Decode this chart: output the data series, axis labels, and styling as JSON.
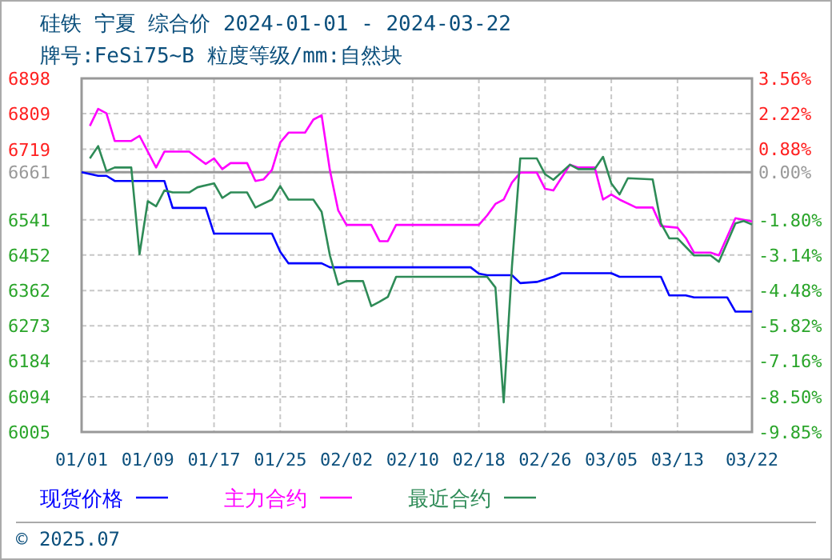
{
  "chart_data": {
    "type": "line",
    "title": "硅铁  宁夏  综合价  2024-01-01 - 2024-03-22",
    "subtitle": "牌号:FeSi75~B 粒度等级/mm:自然块",
    "xlim": [
      "--01-01",
      "--03-22"
    ],
    "xticks": [
      {
        "value": "--01-01",
        "label": "01/01"
      },
      {
        "value": "--01-09",
        "label": "01/09"
      },
      {
        "value": "--01-17",
        "label": "01/17"
      },
      {
        "value": "--01-25",
        "label": "01/25"
      },
      {
        "value": "--02-02",
        "label": "02/02"
      },
      {
        "value": "--02-10",
        "label": "02/10"
      },
      {
        "value": "--02-18",
        "label": "02/18"
      },
      {
        "value": "--02-26",
        "label": "02/26"
      },
      {
        "value": "--03-05",
        "label": "03/05"
      },
      {
        "value": "--03-13",
        "label": "03/13"
      },
      {
        "value": "--03-22",
        "label": "03/22"
      }
    ],
    "ylim": [
      6005,
      6898
    ],
    "yticks": [
      6005,
      6094,
      6184,
      6273,
      6362,
      6452,
      6541,
      6661,
      6719,
      6809,
      6898
    ],
    "y2lim": [
      -9.85,
      3.56
    ],
    "y2ticks": [
      {
        "value": -9.85,
        "label": "-9.85%"
      },
      {
        "value": -8.5,
        "label": "-8.50%"
      },
      {
        "value": -7.16,
        "label": "-7.16%"
      },
      {
        "value": -5.82,
        "label": "-5.82%"
      },
      {
        "value": -4.48,
        "label": "-4.48%"
      },
      {
        "value": -3.14,
        "label": "-3.14%"
      },
      {
        "value": -1.8,
        "label": "-1.80%"
      },
      {
        "value": 0,
        "label": "0.00%"
      },
      {
        "value": 0.88,
        "label": "0.88%"
      },
      {
        "value": 2.22,
        "label": "2.22%"
      },
      {
        "value": 3.56,
        "label": "3.56%"
      }
    ],
    "ref_lines": [
      {
        "axis": "y",
        "value": 6661,
        "color": "#999999"
      }
    ],
    "grid": true,
    "legend": "bottom",
    "line_style": "solid",
    "marker": "none",
    "annotations": [
      "© 2025.07"
    ],
    "series": [
      {
        "name": "现货价格",
        "color": "#0000ff",
        "x": [
          "--01-01",
          "--01-03",
          "--01-04",
          "--01-05",
          "--01-11",
          "--01-12",
          "--01-16",
          "--01-17",
          "--01-24",
          "--01-25",
          "--01-26",
          "--01-30",
          "--01-31",
          "--02-17",
          "--02-18",
          "--02-19",
          "--02-22",
          "--02-23",
          "--02-25",
          "--02-27",
          "--02-28",
          "--03-05",
          "--03-06",
          "--03-11",
          "--03-12",
          "--03-14",
          "--03-15",
          "--03-19",
          "--03-20",
          "--03-22"
        ],
        "values": [
          6661,
          6652,
          6652,
          6639,
          6639,
          6571,
          6571,
          6506,
          6506,
          6460,
          6431,
          6431,
          6421,
          6421,
          6405,
          6401,
          6401,
          6381,
          6384,
          6397,
          6406,
          6406,
          6397,
          6397,
          6350,
          6350,
          6345,
          6345,
          6309,
          6309
        ]
      },
      {
        "name": "主力合约",
        "color": "#ff00ff",
        "x": [
          "--01-02",
          "--01-03",
          "--01-04",
          "--01-05",
          "--01-07",
          "--01-08",
          "--01-10",
          "--01-11",
          "--01-14",
          "--01-16",
          "--01-17",
          "--01-18",
          "--01-19",
          "--01-21",
          "--01-22",
          "--01-23",
          "--01-24",
          "--01-25",
          "--01-26",
          "--01-28",
          "--01-29",
          "--01-30",
          "--01-31",
          "--02-01",
          "--02-02",
          "--02-05",
          "--02-06",
          "--02-07",
          "--02-08",
          "--02-18",
          "--02-19",
          "--02-20",
          "--02-21",
          "--02-22",
          "--02-23",
          "--02-25",
          "--02-26",
          "--02-27",
          "--02-29",
          "--03-01",
          "--03-03",
          "--03-04",
          "--03-05",
          "--03-06",
          "--03-08",
          "--03-10",
          "--03-11",
          "--03-13",
          "--03-14",
          "--03-15",
          "--03-17",
          "--03-18",
          "--03-19",
          "--03-20",
          "--03-21",
          "--03-22"
        ],
        "values": [
          6778,
          6821,
          6810,
          6740,
          6740,
          6753,
          6673,
          6713,
          6713,
          6682,
          6696,
          6669,
          6684,
          6684,
          6639,
          6643,
          6667,
          6736,
          6761,
          6761,
          6794,
          6805,
          6666,
          6565,
          6528,
          6528,
          6487,
          6487,
          6528,
          6528,
          6552,
          6581,
          6592,
          6635,
          6660,
          6660,
          6619,
          6615,
          6680,
          6673,
          6673,
          6592,
          6605,
          6592,
          6572,
          6572,
          6525,
          6521,
          6495,
          6458,
          6458,
          6451,
          6498,
          6545,
          6541,
          6537
        ]
      },
      {
        "name": "最近合约",
        "color": "#2e8b57",
        "x": [
          "--01-02",
          "--01-03",
          "--01-04",
          "--01-05",
          "--01-07",
          "--01-08",
          "--01-09",
          "--01-10",
          "--01-11",
          "--01-12",
          "--01-14",
          "--01-15",
          "--01-17",
          "--01-18",
          "--01-19",
          "--01-21",
          "--01-22",
          "--01-24",
          "--01-25",
          "--01-26",
          "--01-29",
          "--01-30",
          "--01-31",
          "--02-01",
          "--02-02",
          "--02-04",
          "--02-05",
          "--02-06",
          "--02-07",
          "--02-08",
          "--02-19",
          "--02-20",
          "--02-21",
          "--02-22",
          "--02-23",
          "--02-25",
          "--02-26",
          "--02-27",
          "--02-29",
          "--03-01",
          "--03-03",
          "--03-04",
          "--03-05",
          "--03-06",
          "--03-07",
          "--03-10",
          "--03-11",
          "--03-12",
          "--03-13",
          "--03-15",
          "--03-17",
          "--03-18",
          "--03-20",
          "--03-21",
          "--03-22"
        ],
        "values": [
          6696,
          6727,
          6664,
          6673,
          6673,
          6454,
          6588,
          6575,
          6615,
          6610,
          6610,
          6623,
          6633,
          6596,
          6610,
          6610,
          6572,
          6592,
          6626,
          6592,
          6592,
          6561,
          6451,
          6377,
          6386,
          6386,
          6323,
          6334,
          6346,
          6397,
          6397,
          6370,
          6080,
          6424,
          6696,
          6696,
          6656,
          6642,
          6680,
          6669,
          6669,
          6700,
          6633,
          6605,
          6646,
          6643,
          6532,
          6494,
          6494,
          6451,
          6451,
          6435,
          6532,
          6538,
          6529
        ]
      }
    ]
  }
}
